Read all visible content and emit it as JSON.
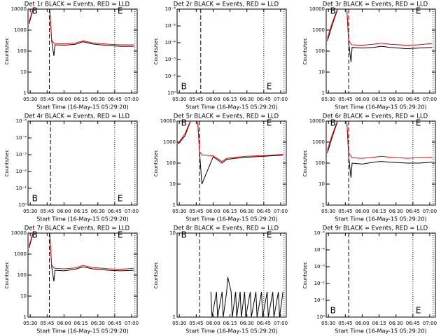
{
  "chart_data": [
    {
      "type": "line",
      "title": "Det 1r BLACK = Events, RED = LLD",
      "ylabel": "Counts/sec",
      "xlabel": "Start Time (16-May-15 05:29:20)",
      "xlim": [
        "05:28",
        "07:05"
      ],
      "xticks": [
        "05:30",
        "05:45",
        "06:00",
        "06:15",
        "06:30",
        "06:45",
        "07:00"
      ],
      "log_y": true,
      "ylim": [
        1,
        10000
      ],
      "yticks": [
        1,
        10,
        100,
        1000,
        10000
      ],
      "x": [
        "05:29",
        "05:32",
        "05:40",
        "05:47",
        "05:49",
        "05:51",
        "05:52",
        "06:00",
        "06:10",
        "06:17",
        "06:25",
        "06:40",
        "06:50",
        "07:02"
      ],
      "series": [
        {
          "color": "#000000",
          "values": [
            2000,
            8000,
            20000,
            20000,
            300,
            60,
            200,
            190,
            210,
            280,
            220,
            180,
            170,
            170
          ]
        },
        {
          "color": "#ff0000",
          "values": [
            2500,
            9000,
            20000,
            20000,
            330,
            240,
            230,
            220,
            240,
            310,
            250,
            210,
            200,
            200
          ]
        }
      ],
      "vlines": [
        {
          "x": "05:47",
          "style": "dashed"
        },
        {
          "x": "06:45",
          "style": "dotted"
        },
        {
          "x": "07:03",
          "style": "dotted"
        }
      ],
      "annotations": [
        {
          "text": "B",
          "x": "05:29"
        },
        {
          "text": "E",
          "x": "06:45"
        }
      ]
    },
    {
      "type": "line",
      "title": "Det 2r BLACK = Events, RED = LLD",
      "ylabel": "Counts/sec",
      "xlabel": "Start Time (16-May-15 05:29:20)",
      "xlim": [
        "05:28",
        "07:05"
      ],
      "xticks": [
        "05:30",
        "05:45",
        "06:00",
        "06:15",
        "06:30",
        "06:45",
        "07:00"
      ],
      "yticklabels": [
        "10⁰",
        "10⁻²",
        "10⁻³",
        "10⁻⁴",
        "10⁻⁵",
        "10⁻⁶"
      ],
      "vlines": [
        {
          "x": "05:49",
          "style": "dashed"
        },
        {
          "x": "06:45",
          "style": "dotted"
        },
        {
          "x": "07:03",
          "style": "dotted"
        }
      ],
      "annotations": [
        {
          "text": "B",
          "x": "05:29"
        },
        {
          "text": "E",
          "x": "06:45"
        }
      ]
    },
    {
      "type": "line",
      "title": "Det 3r BLACK = Events, RED = LLD",
      "ylabel": "Counts/sec",
      "xlabel": "Start Time (16-May-15 05:29:20)",
      "xlim": [
        "05:28",
        "07:05"
      ],
      "xticks": [
        "05:30",
        "05:45",
        "06:00",
        "06:15",
        "06:30",
        "06:45",
        "07:00"
      ],
      "log_y": true,
      "ylim": [
        1,
        10000
      ],
      "yticks": [
        1,
        10,
        100,
        1000,
        10000
      ],
      "x": [
        "05:29",
        "05:33",
        "05:40",
        "05:46",
        "05:48",
        "05:50",
        "05:51",
        "06:00",
        "06:10",
        "06:17",
        "06:25",
        "06:40",
        "06:50",
        "07:02"
      ],
      "series": [
        {
          "color": "#000000",
          "values": [
            300,
            1500,
            20000,
            20000,
            250,
            30,
            150,
            140,
            150,
            170,
            150,
            130,
            140,
            150
          ]
        },
        {
          "color": "#ff0000",
          "values": [
            400,
            2000,
            20000,
            20000,
            320,
            220,
            200,
            190,
            210,
            240,
            210,
            190,
            200,
            230
          ]
        }
      ],
      "vlines": [
        {
          "x": "05:48",
          "style": "dashed"
        },
        {
          "x": "06:45",
          "style": "dotted"
        },
        {
          "x": "07:03",
          "style": "dotted"
        }
      ],
      "annotations": [
        {
          "text": "B",
          "x": "05:29"
        },
        {
          "text": "E",
          "x": "06:45"
        }
      ]
    },
    {
      "type": "line",
      "title": "Det 4r BLACK = Events, RED = LLD",
      "ylabel": "Counts/sec",
      "xlabel": "Start Time (16-May-15 05:29:20)",
      "xlim": [
        "05:28",
        "07:05"
      ],
      "xticks": [
        "05:30",
        "05:45",
        "06:00",
        "06:15",
        "06:30",
        "06:45",
        "07:00"
      ],
      "yticklabels": [
        "10⁰",
        "10⁻¹",
        "10⁻²",
        "10⁻³",
        "10⁻⁴",
        "10⁻⁴"
      ],
      "vlines": [
        {
          "x": "05:48",
          "style": "dashed"
        },
        {
          "x": "06:45",
          "style": "dotted"
        },
        {
          "x": "07:03",
          "style": "dotted"
        }
      ],
      "annotations": [
        {
          "text": "B",
          "x": "05:29"
        },
        {
          "text": "E",
          "x": "06:45"
        }
      ]
    },
    {
      "type": "line",
      "title": "Det 5r BLACK = Events, RED = LLD",
      "ylabel": "Counts/sec",
      "xlabel": "Start Time (16-May-15 05:29:20)",
      "xlim": [
        "05:28",
        "07:05"
      ],
      "xticks": [
        "05:30",
        "05:45",
        "06:00",
        "06:15",
        "06:30",
        "06:45",
        "07:00"
      ],
      "log_y": true,
      "ylim": [
        1,
        10000
      ],
      "yticks": [
        1,
        10,
        100,
        1000,
        10000
      ],
      "x": [
        "05:29",
        "05:35",
        "05:42",
        "05:46",
        "05:48",
        "05:50",
        "06:00",
        "06:08",
        "06:12",
        "06:20",
        "06:30",
        "06:45",
        "07:02"
      ],
      "series": [
        {
          "color": "#000000",
          "values": [
            800,
            2000,
            20000,
            20000,
            300,
            10,
            200,
            100,
            150,
            170,
            190,
            210,
            240
          ]
        },
        {
          "color": "#ff0000",
          "values": [
            900,
            2500,
            20000,
            20000,
            350,
            250,
            220,
            120,
            170,
            190,
            210,
            230,
            260
          ]
        }
      ],
      "vlines": [
        {
          "x": "05:48",
          "style": "dashed"
        },
        {
          "x": "06:45",
          "style": "dotted"
        },
        {
          "x": "07:03",
          "style": "dotted"
        }
      ],
      "annotations": [
        {
          "text": "B",
          "x": "05:29"
        },
        {
          "text": "E",
          "x": "06:45"
        }
      ]
    },
    {
      "type": "line",
      "title": "Det 6r BLACK = Events, RED = LLD",
      "ylabel": "Counts/sec",
      "xlabel": "Start Time (16-May-15 05:29:20)",
      "xlim": [
        "05:28",
        "07:05"
      ],
      "xticks": [
        "05:30",
        "05:45",
        "06:00",
        "06:15",
        "06:30",
        "06:45",
        "07:00"
      ],
      "log_y": true,
      "ylim": [
        1,
        10000
      ],
      "yticks": [
        1,
        10,
        100,
        1000,
        10000
      ],
      "x": [
        "05:29",
        "05:33",
        "05:40",
        "05:46",
        "05:48",
        "05:50",
        "05:51",
        "06:00",
        "06:10",
        "06:17",
        "06:25",
        "06:40",
        "06:50",
        "07:02"
      ],
      "series": [
        {
          "color": "#000000",
          "values": [
            300,
            1500,
            20000,
            20000,
            200,
            20,
            100,
            90,
            110,
            120,
            110,
            100,
            100,
            110
          ]
        },
        {
          "color": "#ff0000",
          "values": [
            400,
            2000,
            20000,
            20000,
            300,
            220,
            180,
            170,
            190,
            210,
            190,
            170,
            180,
            190
          ]
        }
      ],
      "vlines": [
        {
          "x": "05:48",
          "style": "dashed"
        },
        {
          "x": "06:45",
          "style": "dotted"
        },
        {
          "x": "07:03",
          "style": "dotted"
        }
      ],
      "annotations": [
        {
          "text": "B",
          "x": "05:29"
        },
        {
          "text": "E",
          "x": "06:45"
        }
      ]
    },
    {
      "type": "line",
      "title": "Det 7r BLACK = Events, RED = LLD",
      "ylabel": "Counts/sec",
      "xlabel": "Start Time (16-May-15 05:29:20)",
      "xlim": [
        "05:28",
        "07:05"
      ],
      "xticks": [
        "05:30",
        "05:45",
        "06:00",
        "06:15",
        "06:30",
        "06:45",
        "07:00"
      ],
      "log_y": true,
      "ylim": [
        1,
        10000
      ],
      "yticks": [
        1,
        10,
        100,
        1000,
        10000
      ],
      "x": [
        "05:29",
        "05:32",
        "05:40",
        "05:47",
        "05:49",
        "05:51",
        "05:52",
        "06:00",
        "06:10",
        "06:17",
        "06:25",
        "06:40",
        "06:50",
        "07:02"
      ],
      "series": [
        {
          "color": "#000000",
          "values": [
            2000,
            8000,
            20000,
            20000,
            250,
            50,
            170,
            160,
            190,
            250,
            200,
            170,
            160,
            170
          ]
        },
        {
          "color": "#ff0000",
          "values": [
            2500,
            9000,
            20000,
            20000,
            300,
            220,
            210,
            200,
            220,
            290,
            230,
            200,
            190,
            210
          ]
        }
      ],
      "vlines": [
        {
          "x": "05:47",
          "style": "dashed"
        },
        {
          "x": "06:45",
          "style": "dotted"
        },
        {
          "x": "07:03",
          "style": "dotted"
        }
      ],
      "annotations": [
        {
          "text": "B",
          "x": "05:29"
        },
        {
          "text": "E",
          "x": "06:45"
        }
      ]
    },
    {
      "type": "line",
      "title": "Det 8r BLACK = Events, RED = LLD",
      "ylabel": "Counts/sec",
      "xlabel": "Start Time (16-May-15 05:29:20)",
      "xlim": [
        "05:28",
        "07:05"
      ],
      "xticks": [
        "05:30",
        "05:45",
        "06:00",
        "06:15",
        "06:30",
        "06:45",
        "07:00"
      ],
      "log_y": true,
      "ylim": [
        1,
        10
      ],
      "yticks": [
        1,
        10
      ],
      "x": [
        "05:58",
        "05:59",
        "06:03",
        "06:04",
        "06:08",
        "06:09",
        "06:12",
        "06:13",
        "06:16",
        "06:17",
        "06:20",
        "06:21",
        "06:24",
        "06:25",
        "06:28",
        "06:29",
        "06:33",
        "06:34",
        "06:38",
        "06:39",
        "06:43",
        "06:44",
        "06:48",
        "06:49",
        "06:53",
        "06:54",
        "06:58",
        "06:59",
        "07:02"
      ],
      "series": [
        {
          "color": "#000000",
          "values": [
            2,
            1,
            2,
            1,
            2,
            1,
            2,
            3,
            2,
            1,
            2,
            1,
            2,
            1,
            2,
            1,
            2,
            1,
            2,
            1,
            2,
            1,
            2,
            1,
            2,
            1,
            2,
            1,
            2
          ]
        }
      ],
      "vlines": [
        {
          "x": "05:48",
          "style": "dashed"
        },
        {
          "x": "06:45",
          "style": "dotted"
        },
        {
          "x": "07:03",
          "style": "dotted"
        }
      ],
      "annotations": [
        {
          "text": "B",
          "x": "05:29"
        },
        {
          "text": "E",
          "x": "06:45"
        }
      ]
    },
    {
      "type": "line",
      "title": "Det 9r BLACK = Events, RED = LLD",
      "ylabel": "Counts/sec",
      "xlabel": "Start Time (16-May-15 05:29:20)",
      "xlim": [
        "05:28",
        "07:05"
      ],
      "xticks": [
        "05:30",
        "05:45",
        "06:00",
        "06:15",
        "06:30",
        "06:45",
        "07:00"
      ],
      "yticklabels": [
        "10⁰",
        "10⁻¹",
        "10⁻²",
        "10⁻³",
        "10⁻⁴",
        "10⁻⁴"
      ],
      "vlines": [
        {
          "x": "05:48",
          "style": "dashed"
        },
        {
          "x": "06:45",
          "style": "dotted"
        },
        {
          "x": "07:03",
          "style": "dotted"
        }
      ],
      "annotations": [
        {
          "text": "B",
          "x": "05:29"
        },
        {
          "text": "E",
          "x": "06:45"
        }
      ]
    }
  ]
}
